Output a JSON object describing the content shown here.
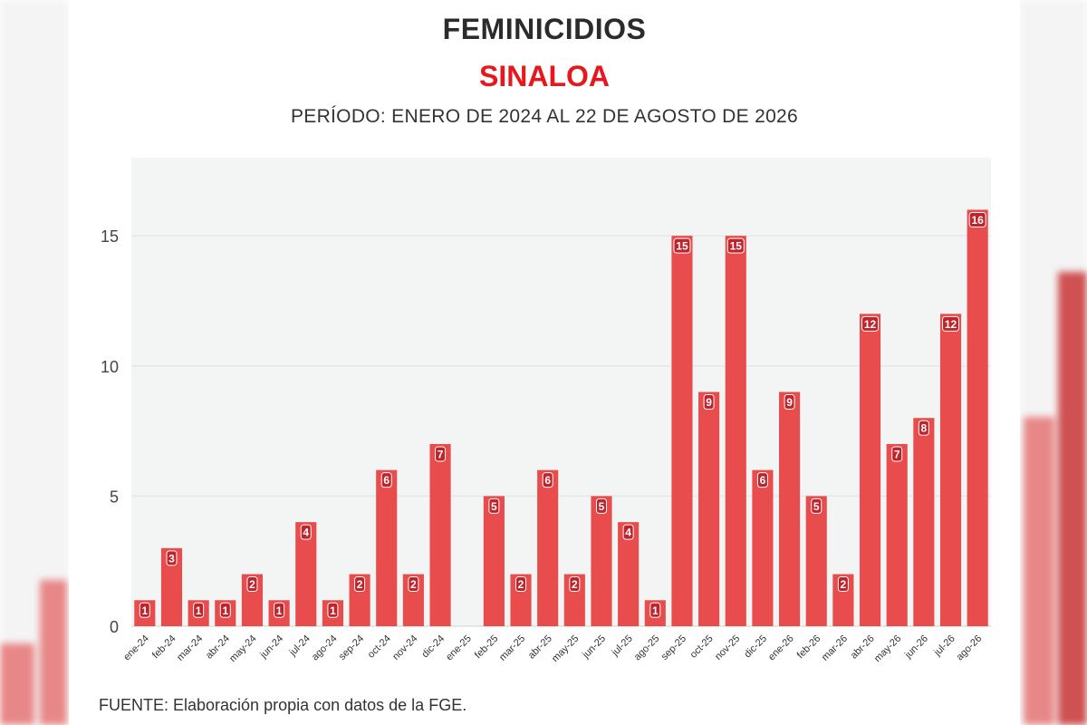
{
  "title": "FEMINICIDIOS",
  "subtitle": "SINALOA",
  "period": "PERÍODO: ENERO DE 2024 AL 22 DE AGOSTO DE 2026",
  "source": "FUENTE: Elaboración propia con datos de la FGE.",
  "colors": {
    "bar": "#e84c4c",
    "bar_label_bg": "#c0232a",
    "plot_bg": "#f3f5f5",
    "title": "#2b2b2b",
    "subtitle": "#e8171d"
  },
  "chart_data": {
    "type": "bar",
    "title": "FEMINICIDIOS",
    "subtitle": "SINALOA",
    "xlabel": "",
    "ylabel": "",
    "ylim": [
      0,
      18
    ],
    "yticks": [
      0,
      5,
      10,
      15
    ],
    "grid": true,
    "legend": "none",
    "categories": [
      "ene-24",
      "feb-24",
      "mar-24",
      "abr-24",
      "may-24",
      "jun-24",
      "jul-24",
      "ago-24",
      "sep-24",
      "oct-24",
      "nov-24",
      "dic-24",
      "ene-25",
      "feb-25",
      "mar-25",
      "abr-25",
      "may-25",
      "jun-25",
      "jul-25",
      "ago-25",
      "sep-25",
      "oct-25",
      "nov-25",
      "dic-25",
      "ene-26",
      "feb-26",
      "mar-26",
      "abr-26",
      "may-26",
      "jun-26",
      "jul-26",
      "ago-26"
    ],
    "values": [
      1,
      3,
      1,
      1,
      2,
      1,
      4,
      1,
      2,
      6,
      2,
      7,
      0,
      5,
      2,
      6,
      2,
      5,
      4,
      1,
      15,
      9,
      15,
      6,
      9,
      5,
      2,
      12,
      7,
      8,
      12,
      16
    ]
  }
}
